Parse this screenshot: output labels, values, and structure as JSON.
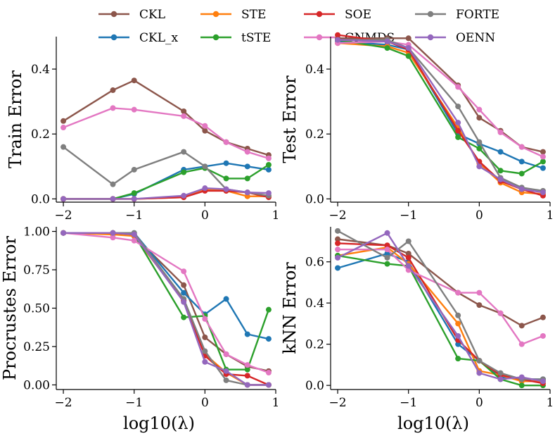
{
  "chart_data": {
    "type": "line",
    "legend": {
      "placement": "top",
      "entries": [
        {
          "name": "CKL",
          "color": "#8c564b"
        },
        {
          "name": "CKL_x",
          "label": "CKL_x",
          "color": "#1f77b4"
        },
        {
          "name": "STE",
          "color": "#ff7f0e"
        },
        {
          "name": "tSTE",
          "color": "#2ca02c"
        },
        {
          "name": "SOE",
          "color": "#d62728"
        },
        {
          "name": "GNMDS",
          "color": "#e377c2"
        },
        {
          "name": "FORTE",
          "color": "#7f7f7f"
        },
        {
          "name": "OENN",
          "color": "#9467bd"
        }
      ]
    },
    "panels": [
      {
        "id": "train",
        "ylabel": "Train Error",
        "xlabel": "",
        "xlim": [
          -2.1,
          1.0
        ],
        "ylim": [
          -0.01,
          0.5
        ],
        "xticks": [
          -2,
          -1,
          0,
          1
        ],
        "xtick_labels": [
          "−2",
          "−1",
          "0",
          "1"
        ],
        "yticks": [
          0.0,
          0.2,
          0.4
        ],
        "ytick_labels": [
          "0.0",
          "0.2",
          "0.4"
        ],
        "x": [
          -2,
          -1.3,
          -1,
          -0.3,
          0,
          0.3,
          0.6,
          0.9
        ],
        "series": [
          {
            "name": "CKL",
            "values": [
              0.24,
              0.335,
              0.365,
              0.27,
              0.21,
              0.175,
              0.155,
              0.135
            ]
          },
          {
            "name": "CKL_x",
            "values": [
              0.0,
              0.0,
              0.015,
              0.09,
              0.1,
              0.11,
              0.1,
              0.09
            ]
          },
          {
            "name": "STE",
            "values": [
              0.0,
              0.0,
              0.0,
              0.005,
              0.03,
              0.025,
              0.008,
              0.008
            ]
          },
          {
            "name": "tSTE",
            "values": [
              0.0,
              0.0,
              0.018,
              0.082,
              0.095,
              0.063,
              0.063,
              0.105
            ]
          },
          {
            "name": "SOE",
            "values": [
              0.0,
              0.0,
              0.0,
              0.005,
              0.025,
              0.025,
              0.02,
              0.005
            ]
          },
          {
            "name": "GNMDS",
            "values": [
              0.22,
              0.28,
              0.275,
              0.255,
              0.225,
              0.175,
              0.145,
              0.125
            ]
          },
          {
            "name": "FORTE",
            "values": [
              0.16,
              0.045,
              0.09,
              0.145,
              0.1,
              0.03,
              0.02,
              0.01
            ]
          },
          {
            "name": "OENN",
            "values": [
              0.0,
              0.0,
              0.0,
              0.01,
              0.033,
              0.03,
              0.02,
              0.018
            ]
          }
        ]
      },
      {
        "id": "test",
        "ylabel": "Test Error",
        "xlabel": "",
        "xlim": [
          -2.1,
          1.0
        ],
        "ylim": [
          -0.01,
          0.5
        ],
        "xticks": [
          -2,
          -1,
          0,
          1
        ],
        "xtick_labels": [
          "−2",
          "−1",
          "0",
          "1"
        ],
        "yticks": [
          0.0,
          0.2,
          0.4
        ],
        "ytick_labels": [
          "0.0",
          "0.2",
          "0.4"
        ],
        "x": [
          -2,
          -1.3,
          -1,
          -0.3,
          0,
          0.3,
          0.6,
          0.9
        ],
        "series": [
          {
            "name": "CKL",
            "values": [
              0.495,
              0.495,
              0.495,
              0.35,
              0.25,
              0.21,
              0.16,
              0.145
            ]
          },
          {
            "name": "CKL_x",
            "values": [
              0.485,
              0.475,
              0.46,
              0.2,
              0.17,
              0.145,
              0.115,
              0.095
            ]
          },
          {
            "name": "STE",
            "values": [
              0.48,
              0.47,
              0.45,
              0.22,
              0.11,
              0.05,
              0.02,
              0.015
            ]
          },
          {
            "name": "tSTE",
            "values": [
              0.49,
              0.465,
              0.44,
              0.19,
              0.155,
              0.087,
              0.078,
              0.115
            ]
          },
          {
            "name": "SOE",
            "values": [
              0.505,
              0.485,
              0.46,
              0.21,
              0.115,
              0.055,
              0.03,
              0.01
            ]
          },
          {
            "name": "GNMDS",
            "values": [
              0.48,
              0.485,
              0.475,
              0.345,
              0.275,
              0.205,
              0.16,
              0.13
            ]
          },
          {
            "name": "FORTE",
            "values": [
              0.49,
              0.49,
              0.465,
              0.285,
              0.175,
              0.065,
              0.035,
              0.025
            ]
          },
          {
            "name": "OENN",
            "values": [
              0.49,
              0.485,
              0.465,
              0.235,
              0.1,
              0.06,
              0.03,
              0.02
            ]
          }
        ]
      },
      {
        "id": "procrustes",
        "ylabel": "Procrustes Error",
        "xlabel": "log10(λ)",
        "xlim": [
          -2.1,
          1.0
        ],
        "ylim": [
          -0.03,
          1.03
        ],
        "xticks": [
          -2,
          -1,
          0,
          1
        ],
        "xtick_labels": [
          "−2",
          "−1",
          "0",
          "1"
        ],
        "yticks": [
          0.0,
          0.25,
          0.5,
          0.75,
          1.0
        ],
        "ytick_labels": [
          "0.00",
          "0.25",
          "0.50",
          "0.75",
          "1.00"
        ],
        "x": [
          -2,
          -1.3,
          -1,
          -0.3,
          0,
          0.3,
          0.6,
          0.9
        ],
        "series": [
          {
            "name": "CKL",
            "values": [
              0.99,
              0.99,
              0.97,
              0.65,
              0.31,
              0.2,
              0.12,
              0.09
            ]
          },
          {
            "name": "CKL_x",
            "values": [
              0.99,
              0.99,
              0.99,
              0.6,
              0.46,
              0.56,
              0.33,
              0.3
            ]
          },
          {
            "name": "STE",
            "values": [
              0.99,
              0.98,
              0.97,
              0.55,
              0.2,
              0.08,
              0.0,
              0.0
            ]
          },
          {
            "name": "tSTE",
            "values": [
              0.99,
              0.99,
              0.98,
              0.44,
              0.45,
              0.1,
              0.1,
              0.49
            ]
          },
          {
            "name": "SOE",
            "values": [
              0.99,
              0.99,
              0.98,
              0.55,
              0.19,
              0.07,
              0.06,
              0.0
            ]
          },
          {
            "name": "GNMDS",
            "values": [
              0.99,
              0.96,
              0.94,
              0.74,
              0.43,
              0.2,
              0.13,
              0.08
            ]
          },
          {
            "name": "FORTE",
            "values": [
              0.99,
              0.99,
              0.99,
              0.56,
              0.22,
              0.03,
              0.0,
              0.0
            ]
          },
          {
            "name": "OENN",
            "values": [
              0.99,
              0.99,
              0.98,
              0.54,
              0.15,
              0.09,
              0.0,
              0.0
            ]
          }
        ]
      },
      {
        "id": "knn",
        "ylabel": "kNN Error",
        "xlabel": "log10(λ)",
        "xlim": [
          -2.1,
          1.0
        ],
        "ylim": [
          -0.02,
          0.77
        ],
        "xticks": [
          -2,
          -1,
          0,
          1
        ],
        "xtick_labels": [
          "−2",
          "−1",
          "0",
          "1"
        ],
        "yticks": [
          0.0,
          0.2,
          0.4,
          0.6
        ],
        "ytick_labels": [
          "0.0",
          "0.2",
          "0.4",
          "0.6"
        ],
        "x": [
          -2,
          -1.3,
          -1,
          -0.3,
          0,
          0.3,
          0.6,
          0.9
        ],
        "series": [
          {
            "name": "CKL",
            "values": [
              0.71,
              0.68,
              0.64,
              0.45,
              0.39,
              0.35,
              0.29,
              0.33
            ]
          },
          {
            "name": "CKL_x",
            "values": [
              0.57,
              0.64,
              0.6,
              0.2,
              0.12,
              0.04,
              0.03,
              0.03
            ]
          },
          {
            "name": "STE",
            "values": [
              0.63,
              0.67,
              0.59,
              0.3,
              0.07,
              0.05,
              0.02,
              0.02
            ]
          },
          {
            "name": "tSTE",
            "values": [
              0.63,
              0.59,
              0.58,
              0.13,
              0.12,
              0.03,
              0.0,
              0.0
            ]
          },
          {
            "name": "SOE",
            "values": [
              0.69,
              0.68,
              0.62,
              0.22,
              0.12,
              0.05,
              0.03,
              0.01
            ]
          },
          {
            "name": "GNMDS",
            "values": [
              0.66,
              0.66,
              0.56,
              0.45,
              0.45,
              0.35,
              0.2,
              0.24
            ]
          },
          {
            "name": "FORTE",
            "values": [
              0.75,
              0.62,
              0.7,
              0.34,
              0.12,
              0.06,
              0.03,
              0.03
            ]
          },
          {
            "name": "OENN",
            "values": [
              0.62,
              0.74,
              0.58,
              0.24,
              0.06,
              0.03,
              0.04,
              0.02
            ]
          }
        ]
      }
    ]
  }
}
